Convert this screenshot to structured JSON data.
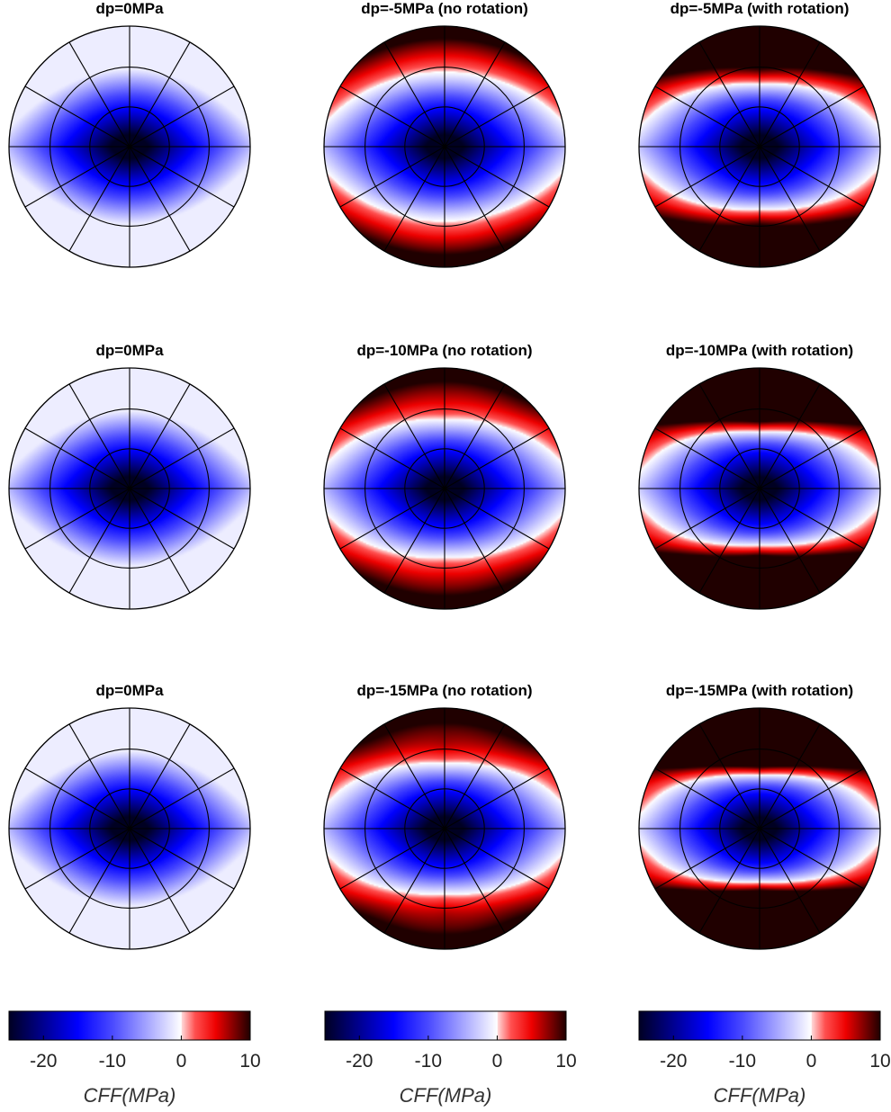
{
  "chart_data": {
    "type": "heatmap",
    "projection": "stereonet",
    "grid": true,
    "panels": [
      {
        "title": "dp=0MPa",
        "dp": 0,
        "rotation": false
      },
      {
        "title": "dp=-5MPa (no rotation)",
        "dp": -5,
        "rotation": false
      },
      {
        "title": "dp=-5MPa (with rotation)",
        "dp": -5,
        "rotation": true
      },
      {
        "title": "dp=0MPa",
        "dp": 0,
        "rotation": false
      },
      {
        "title": "dp=-10MPa (no rotation)",
        "dp": -10,
        "rotation": false
      },
      {
        "title": "dp=-10MPa (with rotation)",
        "dp": -10,
        "rotation": true
      },
      {
        "title": "dp=0MPa",
        "dp": 0,
        "rotation": false
      },
      {
        "title": "dp=-15MPa (no rotation)",
        "dp": -15,
        "rotation": false
      },
      {
        "title": "dp=-15MPa (with rotation)",
        "dp": -15,
        "rotation": true
      }
    ],
    "colorbar": {
      "label": "CFF(MPa)",
      "range": [
        -25,
        10
      ],
      "ticks": [
        -20,
        -10,
        0,
        10
      ],
      "colormap": [
        {
          "value": -25,
          "color": "#000022"
        },
        {
          "value": -15,
          "color": "#0000ff"
        },
        {
          "value": -10,
          "color": "#4a4aff"
        },
        {
          "value": 0,
          "color": "#ffffff"
        },
        {
          "value": 0.1,
          "color": "#ffd6d6"
        },
        {
          "value": 2,
          "color": "#ff5050"
        },
        {
          "value": 5,
          "color": "#ee0000"
        },
        {
          "value": 10,
          "color": "#200000"
        }
      ]
    }
  }
}
